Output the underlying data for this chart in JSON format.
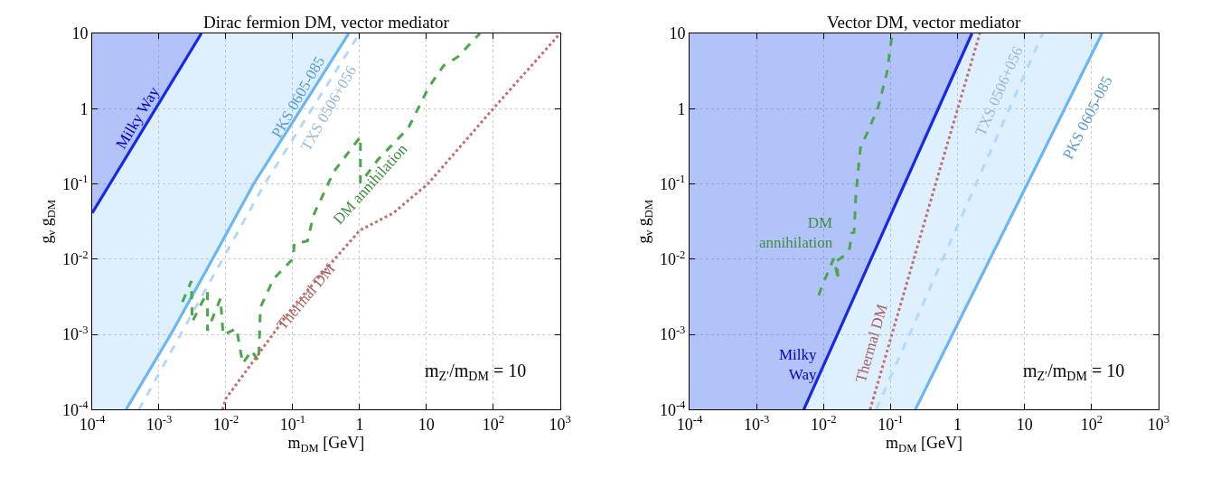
{
  "chart_data": [
    {
      "type": "line",
      "title": "Dirac fermion DM, vector mediator",
      "xlabel": "m$_{DM}$ [GeV]",
      "ylabel": "g$_{ν}$ g$_{DM}$",
      "log": "xy",
      "grid": true,
      "xlim": [
        0.0001,
        1000
      ],
      "ylim": [
        0.0001,
        10
      ],
      "xticks": [
        {
          "value": 0.0001,
          "label": "10$^{-4}$"
        },
        {
          "value": 0.001,
          "label": "10$^{-3}$"
        },
        {
          "value": 0.01,
          "label": "10$^{-2}$"
        },
        {
          "value": 0.1,
          "label": "10$^{-1}$"
        },
        1,
        10,
        {
          "value": 100,
          "label": "10$^{2}$"
        },
        {
          "value": 1000,
          "label": "10$^{3}$"
        }
      ],
      "yticks": [
        {
          "value": 0.0001,
          "label": "10$^{-4}$"
        },
        {
          "value": 0.001,
          "label": "10$^{-3}$"
        },
        {
          "value": 0.01,
          "label": "10$^{-2}$"
        },
        {
          "value": 0.1,
          "label": "10$^{-1}$"
        },
        1,
        10
      ],
      "annotations": [
        "m$_{Z′}$/m$_{DM}$ = 10"
      ],
      "series": [
        {
          "name": "Milky Way",
          "type": "area",
          "color": "#0000e6",
          "line_style": "solid",
          "x": [
            0.0001,
            0.0043
          ],
          "values": [
            0.041,
            10
          ]
        },
        {
          "name": "PKS 0605-085",
          "type": "area",
          "color": "#6ab6f5",
          "line_style": "solid",
          "x": [
            0.00032,
            0.0015,
            0.0063,
            0.026,
            0.69
          ],
          "values": [
            0.0001,
            0.001,
            0.01,
            0.1,
            10
          ]
        },
        {
          "name": "TXS 0506+056",
          "color": "#b3d9fa",
          "line_style": "dashed",
          "x": [
            0.0005,
            0.0021,
            0.038,
            1.0
          ],
          "values": [
            0.0001,
            0.001,
            0.1,
            10
          ]
        },
        {
          "name": "DM annihilation",
          "color": "#4ca64c",
          "line_style": "dashed",
          "x": [
            0.00224,
            0.00304,
            0.00314,
            0.0053,
            0.0053,
            0.0083,
            0.0091,
            0.0144,
            0.0179,
            0.0242,
            0.0309,
            0.0329,
            0.0519,
            0.102,
            0.105,
            0.166,
            0.205,
            0.413,
            1.03,
            1.03,
            1.9,
            5.35,
            10.8,
            18.1,
            29.5,
            63.2
          ],
          "values": [
            0.0027,
            0.0051,
            0.00147,
            0.0037,
            0.00112,
            0.003,
            0.00098,
            0.0012,
            0.00041,
            0.00061,
            0.00044,
            0.0023,
            0.0055,
            0.0102,
            0.0161,
            0.0174,
            0.0386,
            0.146,
            0.423,
            0.103,
            0.212,
            0.551,
            1.92,
            3.74,
            4.88,
            10
          ]
        },
        {
          "name": "Thermal DM",
          "color": "#c07070",
          "line_style": "dotted",
          "x": [
            0.0089,
            0.01,
            0.1,
            1,
            3.2,
            10.5,
            100,
            1000
          ],
          "values": [
            0.0001,
            0.00014,
            0.0023,
            0.024,
            0.041,
            0.1,
            1,
            10
          ]
        }
      ]
    },
    {
      "type": "line",
      "title": "Vector DM, vector mediator",
      "xlabel": "m$_{DM}$ [GeV]",
      "ylabel": "g$_{ν}$ g$_{DM}$",
      "log": "xy",
      "grid": true,
      "xlim": [
        0.0001,
        1000
      ],
      "ylim": [
        0.0001,
        10
      ],
      "xticks": [
        {
          "value": 0.0001,
          "label": "10$^{-4}$"
        },
        {
          "value": 0.001,
          "label": "10$^{-3}$"
        },
        {
          "value": 0.01,
          "label": "10$^{-2}$"
        },
        {
          "value": 0.1,
          "label": "10$^{-1}$"
        },
        1,
        10,
        {
          "value": 100,
          "label": "10$^{2}$"
        },
        {
          "value": 1000,
          "label": "10$^{3}$"
        }
      ],
      "yticks": [
        {
          "value": 0.0001,
          "label": "10$^{-4}$"
        },
        {
          "value": 0.001,
          "label": "10$^{-3}$"
        },
        {
          "value": 0.01,
          "label": "10$^{-2}$"
        },
        {
          "value": 0.1,
          "label": "10$^{-1}$"
        },
        1,
        10
      ],
      "annotations": [
        "m$_{Z′}$/m$_{DM}$ = 10"
      ],
      "series": [
        {
          "name": "Milky Way",
          "type": "area",
          "color": "#0000e6",
          "line_style": "solid",
          "x": [
            0.00506,
            0.0161,
            0.051,
            0.162,
            0.515,
            1.64
          ],
          "values": [
            0.0001,
            0.001,
            0.01,
            0.1,
            1,
            10
          ]
        },
        {
          "name": "PKS 0605-085",
          "type": "area",
          "color": "#6ab6f5",
          "line_style": "solid",
          "x": [
            0.234,
            0.84,
            3.04,
            11.0,
            39.7,
            143
          ],
          "values": [
            0.0001,
            0.001,
            0.01,
            0.1,
            1,
            10
          ]
        },
        {
          "name": "TXS 0506+056",
          "color": "#b3d9fa",
          "line_style": "dashed",
          "x": [
            0.061,
            18.6
          ],
          "values": [
            0.0001,
            10
          ]
        },
        {
          "name": "DM annihilation",
          "color": "#4ca64c",
          "line_style": "dashed",
          "x": [
            0.0085,
            0.0093,
            0.0142,
            0.0166,
            0.0156,
            0.0211,
            0.0246,
            0.0261,
            0.0286,
            0.0304,
            0.0355,
            0.0481,
            0.0652,
            0.0883,
            0.103,
            0.12
          ],
          "values": [
            0.0033,
            0.0042,
            0.0102,
            0.0053,
            0.0094,
            0.0114,
            0.0141,
            0.0221,
            0.0227,
            0.073,
            0.299,
            0.551,
            1.04,
            3.02,
            8.3,
            10
          ]
        },
        {
          "name": "Thermal DM",
          "color": "#c07070",
          "line_style": "dotted",
          "x": [
            0.0495,
            0.47,
            2.15
          ],
          "values": [
            0.0001,
            0.1,
            10
          ]
        }
      ]
    }
  ]
}
